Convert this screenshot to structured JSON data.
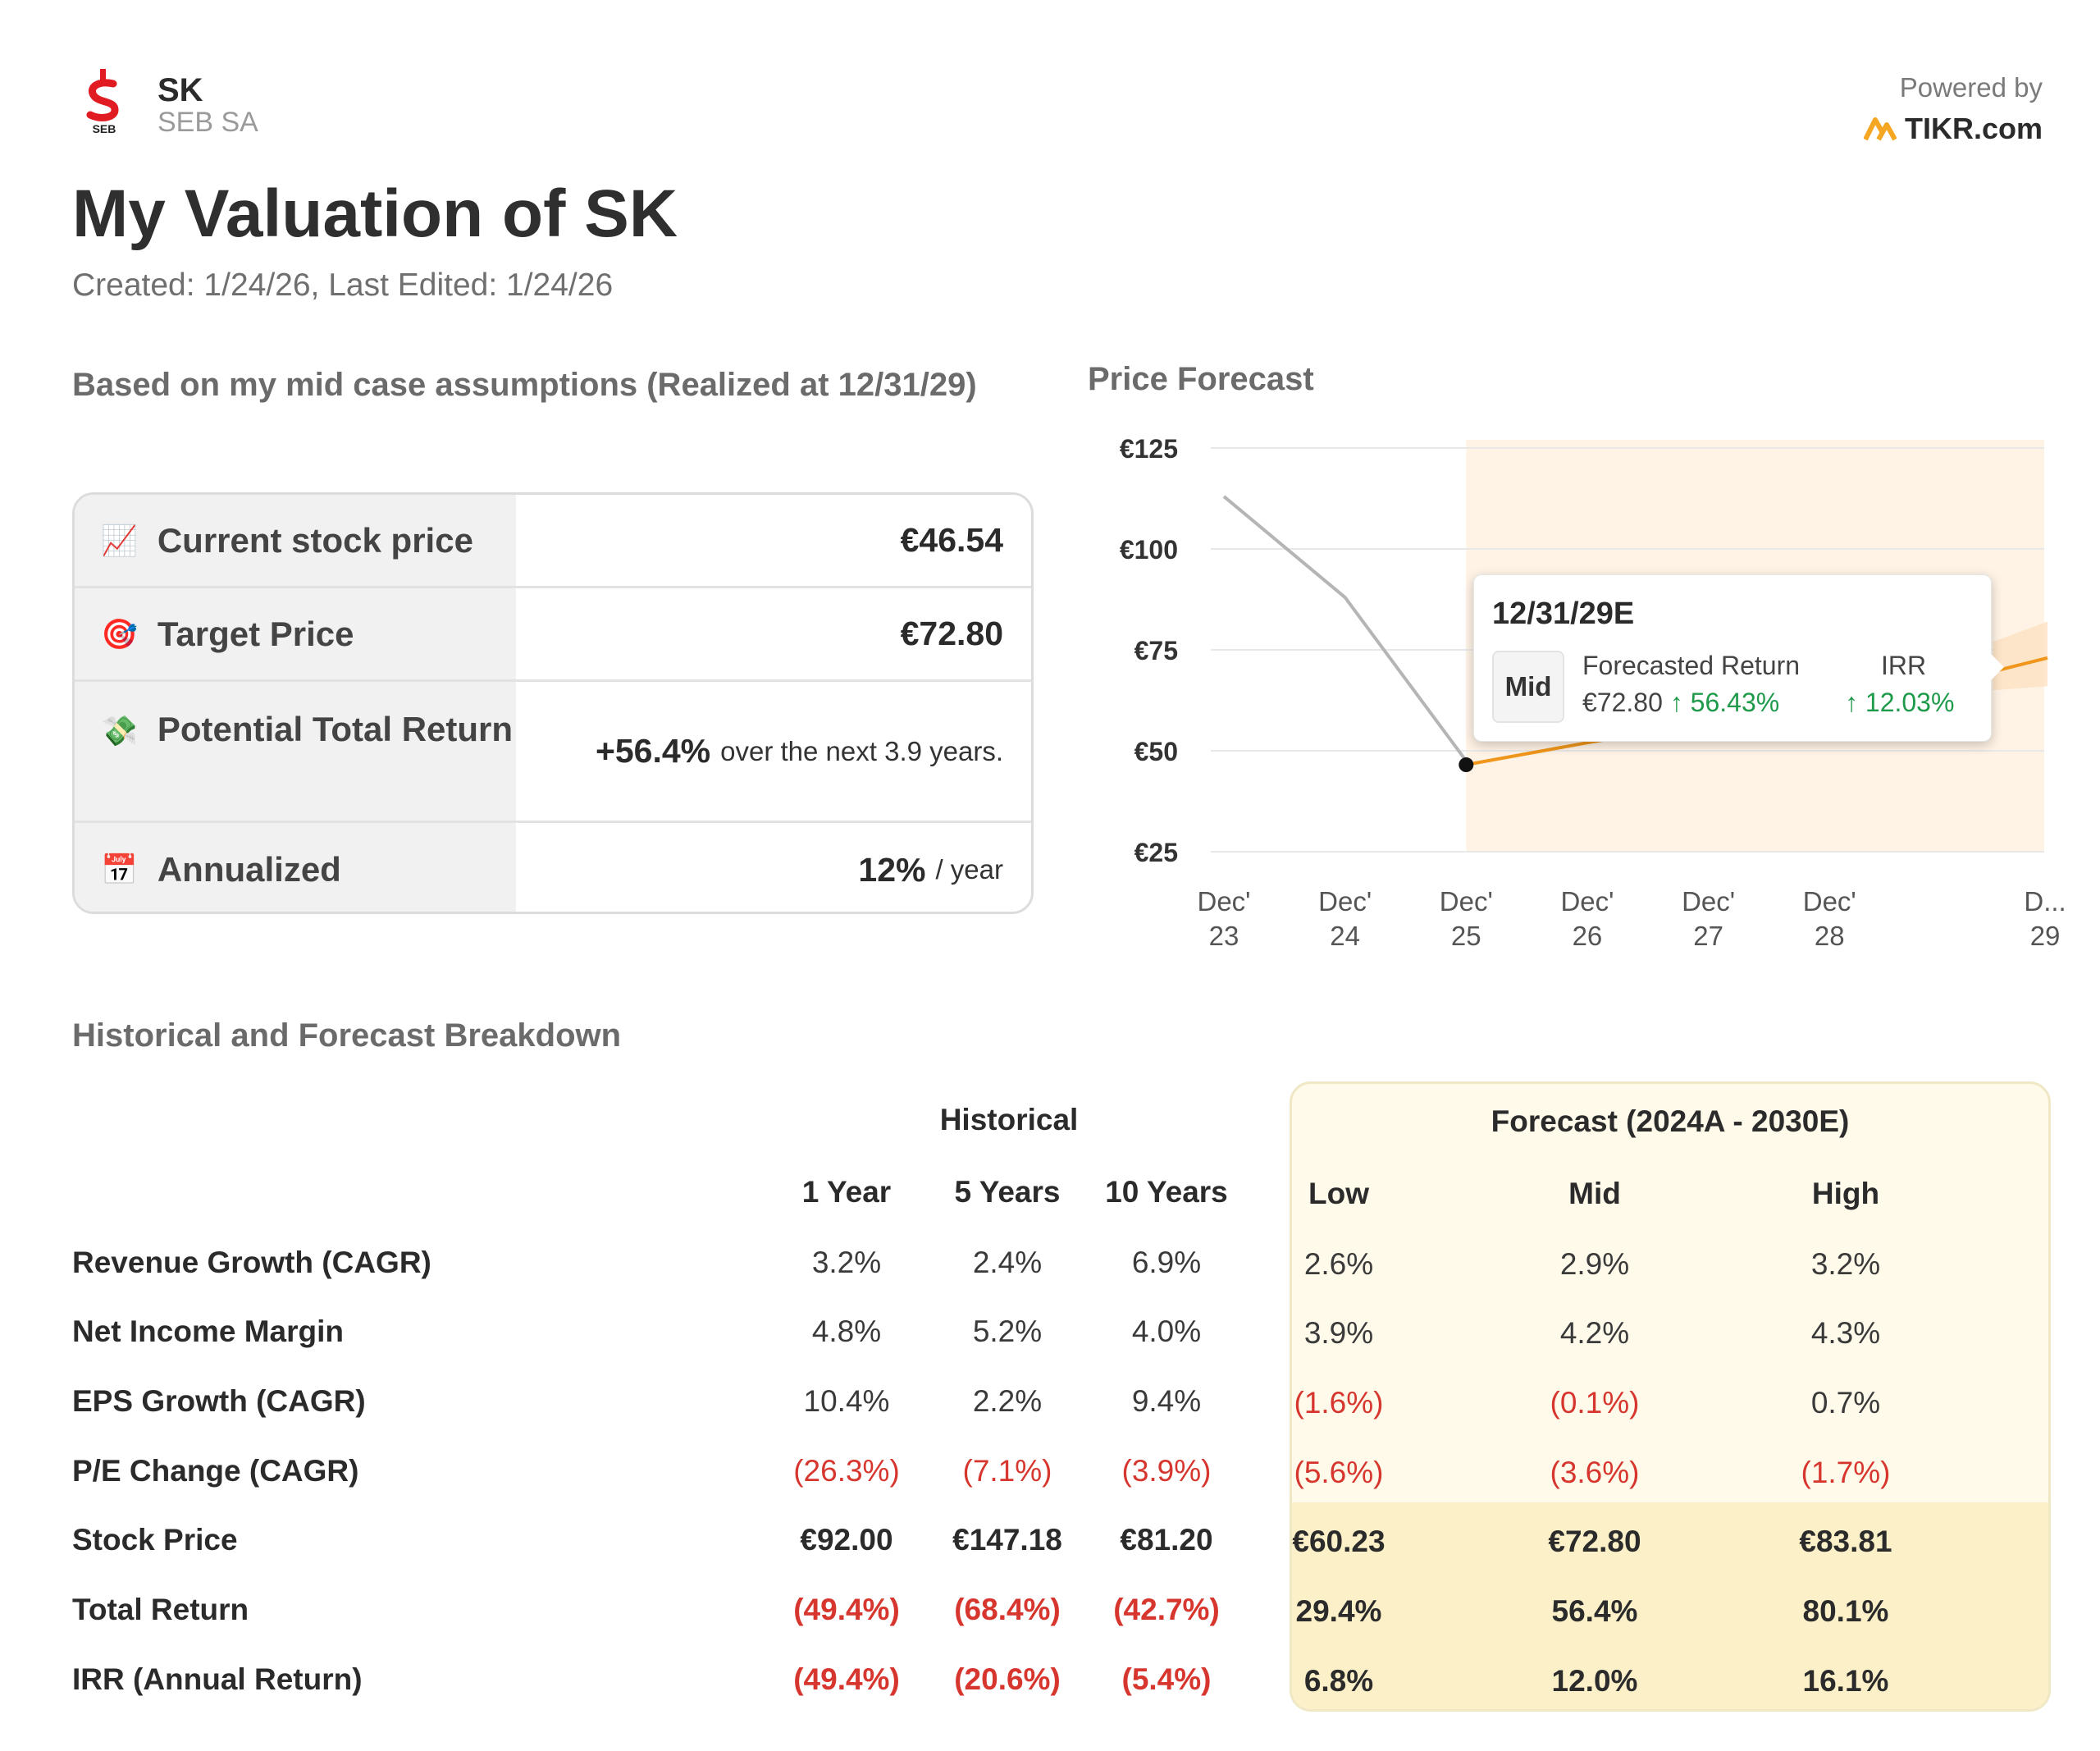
{
  "header": {
    "logo_text": "SEB",
    "ticker": "SK",
    "company": "SEB SA",
    "powered_by": "Powered by",
    "brand": "TIKR.com",
    "brand_color": "#f5a623"
  },
  "page": {
    "title": "My Valuation of SK",
    "dates": "Created: 1/24/26, Last Edited: 1/24/26"
  },
  "summary": {
    "heading": "Based on my mid case assumptions (Realized at 12/31/29)",
    "rows": [
      {
        "icon": "chart-increasing-icon",
        "label": "Current stock price",
        "value": "€46.54",
        "suffix": ""
      },
      {
        "icon": "target-icon",
        "label": "Target Price",
        "value": "€72.80",
        "suffix": ""
      },
      {
        "icon": "money-flying-icon",
        "label": "Potential Total Return",
        "value": "+56.4%",
        "suffix": "over the next 3.9 years."
      },
      {
        "icon": "calendar-icon",
        "label": "Annualized",
        "value": "12%",
        "suffix": "/ year"
      }
    ]
  },
  "chart": {
    "heading": "Price Forecast",
    "tooltip": {
      "date": "12/31/29E",
      "badge": "Mid",
      "col1_header": "Forecasted Return",
      "col1_price": "€72.80",
      "col1_return": "↑ 56.43%",
      "col2_header": "IRR",
      "col2_value": "↑ 12.03%"
    }
  },
  "chart_data": {
    "type": "line",
    "title": "Price Forecast",
    "x_tick_labels": [
      [
        "Dec'",
        "23"
      ],
      [
        "Dec'",
        "24"
      ],
      [
        "Dec'",
        "25"
      ],
      [
        "Dec'",
        "26"
      ],
      [
        "Dec'",
        "27"
      ],
      [
        "Dec'",
        "28"
      ],
      [
        "D...",
        "29"
      ]
    ],
    "y_tick_labels": [
      "€125",
      "€100",
      "€75",
      "€50",
      "€25"
    ],
    "y_ticks": [
      125,
      100,
      75,
      50,
      25
    ],
    "ylim": [
      25,
      125
    ],
    "xlim": [
      2023,
      2029.8
    ],
    "historical": {
      "x": [
        2023,
        2024,
        2025
      ],
      "y": [
        113,
        88,
        47.5
      ]
    },
    "forecast": {
      "x": [
        2025,
        2026,
        2027,
        2028,
        2029,
        2029.8
      ],
      "y": [
        46.54,
        52,
        57,
        62,
        67,
        73
      ]
    },
    "forecast_band": {
      "x": [
        2029.35,
        2029.8
      ],
      "low": [
        65,
        66
      ],
      "high": [
        77,
        82
      ]
    },
    "forecast_region_start": 2025,
    "grid": true,
    "colors": {
      "historical": "#b5b5b5",
      "forecast": "#f0961c",
      "region": "#fff3e6",
      "band": "#fde1c2"
    }
  },
  "breakdown": {
    "heading": "Historical and Forecast Breakdown",
    "historical_header": "Historical",
    "forecast_header": "Forecast (2024A - 2030E)",
    "historical_cols": [
      "1 Year",
      "5 Years",
      "10 Years"
    ],
    "forecast_cols": [
      "Low",
      "Mid",
      "High"
    ],
    "rows": [
      {
        "label": "Revenue Growth (CAGR)",
        "hist": [
          "3.2%",
          "2.4%",
          "6.9%"
        ],
        "fc": [
          "2.6%",
          "2.9%",
          "3.2%"
        ]
      },
      {
        "label": "Net Income Margin",
        "hist": [
          "4.8%",
          "5.2%",
          "4.0%"
        ],
        "fc": [
          "3.9%",
          "4.2%",
          "4.3%"
        ]
      },
      {
        "label": "EPS Growth (CAGR)",
        "hist": [
          "10.4%",
          "2.2%",
          "9.4%"
        ],
        "fc": [
          "(1.6%)",
          "(0.1%)",
          "0.7%"
        ]
      },
      {
        "label": "P/E Change (CAGR)",
        "hist": [
          "(26.3%)",
          "(7.1%)",
          "(3.9%)"
        ],
        "fc": [
          "(5.6%)",
          "(3.6%)",
          "(1.7%)"
        ]
      },
      {
        "label": "Stock Price",
        "hist": [
          "€92.00",
          "€147.18",
          "€81.20"
        ],
        "fc": [
          "€60.23",
          "€72.80",
          "€83.81"
        ]
      },
      {
        "label": "Total Return",
        "hist": [
          "(49.4%)",
          "(68.4%)",
          "(42.7%)"
        ],
        "fc": [
          "29.4%",
          "56.4%",
          "80.1%"
        ]
      },
      {
        "label": "IRR (Annual Return)",
        "hist": [
          "(49.4%)",
          "(20.6%)",
          "(5.4%)"
        ],
        "fc": [
          "6.8%",
          "12.0%",
          "16.1%"
        ]
      }
    ]
  }
}
